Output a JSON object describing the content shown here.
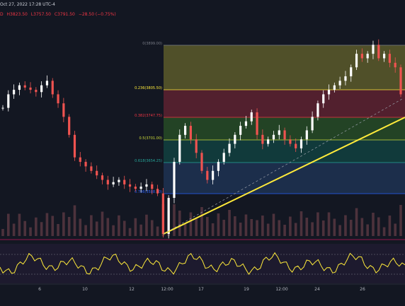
{
  "header": {
    "datetime": "Oct 27, 2022 17:28 UTC-4",
    "indicator": "D",
    "ohlc": [
      "H3823.50",
      "L3757.50",
      "C3791.50",
      "−28.50 (−0.75%)"
    ]
  },
  "colors": {
    "background": "#131722",
    "candle_up": "#ffffff",
    "candle_down": "#ef5350",
    "trend_line": "#ffeb3b",
    "oscillator_line": "#ffeb3b",
    "volume_bar": "#5d3a44"
  },
  "fib": {
    "levels": [
      {
        "label": "0(3899.00)",
        "price": 3899.0,
        "color": "#787b86",
        "fill": "#5c5a2a"
      },
      {
        "label": "0.236(3805.50)",
        "price": 3805.5,
        "color": "#ffeb3b",
        "fill": "#5e2230"
      },
      {
        "label": "0.382(3747.75)",
        "price": 3747.75,
        "color": "#f23645",
        "fill": "#274b26"
      },
      {
        "label": "0.5(3701.00)",
        "price": 3701.0,
        "color": "#cddc39",
        "fill": "#12413f"
      },
      {
        "label": "0.618(3654.25)",
        "price": 3654.25,
        "color": "#26a69a",
        "fill": "#1e3352"
      },
      {
        "label": "0.786(3588.50)",
        "price": 3588.5,
        "color": "#2962ff",
        "fill": ""
      }
    ]
  },
  "xaxis": {
    "ticks": [
      "6",
      "10",
      "12",
      "12:00",
      "17",
      "19",
      "12:00",
      "24",
      "26"
    ]
  },
  "chart_data": {
    "type": "candlestick",
    "price_range": [
      3480,
      3970
    ],
    "series": [
      {
        "name": "price",
        "values": [
          3760,
          3790,
          3800,
          3810,
          3805,
          3800,
          3795,
          3810,
          3820,
          3790,
          3770,
          3740,
          3700,
          3650,
          3640,
          3630,
          3620,
          3610,
          3600,
          3590,
          3595,
          3600,
          3590,
          3585,
          3580,
          3585,
          3590,
          3580,
          3570,
          3480,
          3560,
          3640,
          3700,
          3720,
          3690,
          3660,
          3620,
          3600,
          3620,
          3640,
          3660,
          3680,
          3700,
          3720,
          3730,
          3750,
          3700,
          3680,
          3690,
          3700,
          3710,
          3690,
          3680,
          3670,
          3690,
          3710,
          3740,
          3770,
          3790,
          3800,
          3810,
          3820,
          3830,
          3850,
          3880,
          3870,
          3880,
          3900,
          3870,
          3880,
          3860,
          3850,
          3790
        ]
      }
    ]
  }
}
